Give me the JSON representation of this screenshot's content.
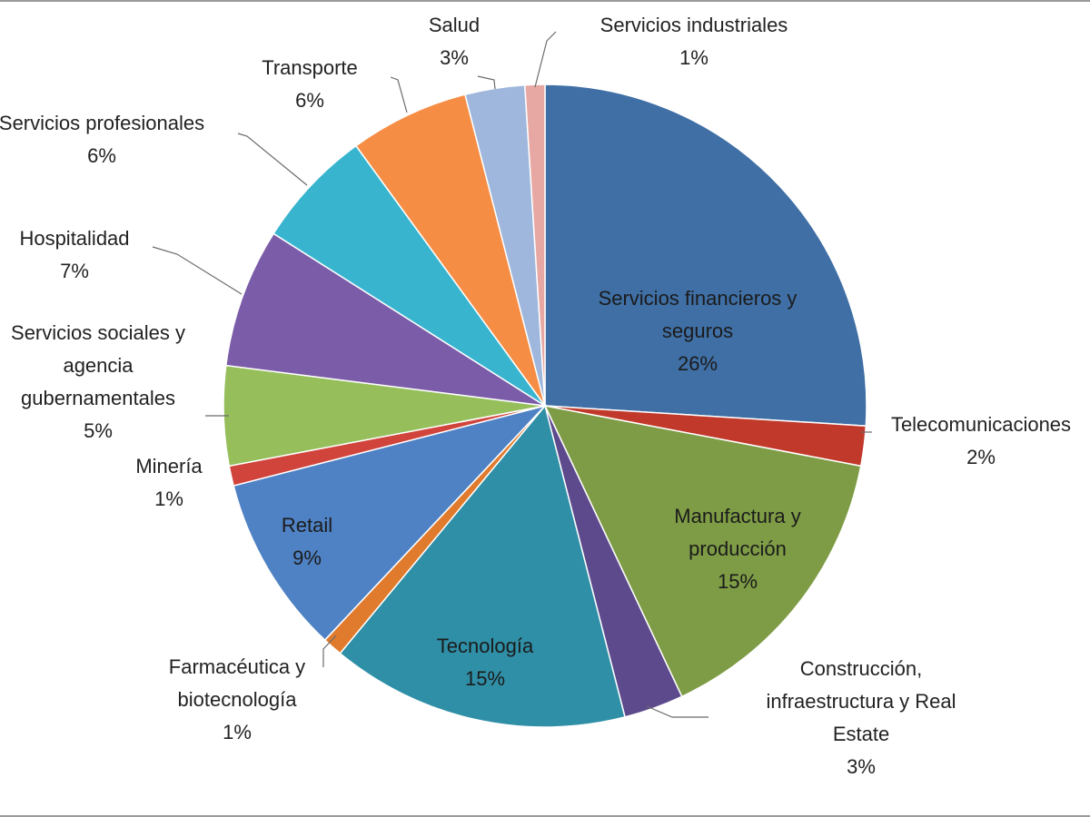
{
  "chart_data": {
    "type": "pie",
    "title": "",
    "slices": [
      {
        "label_lines": [
          "Servicios financieros y",
          "seguros"
        ],
        "percent_label": "26%",
        "value": 26,
        "color": "#3f6fa5"
      },
      {
        "label_lines": [
          "Telecomunicaciones"
        ],
        "percent_label": "2%",
        "value": 2,
        "color": "#c0392b"
      },
      {
        "label_lines": [
          "Manufactura y",
          "producción"
        ],
        "percent_label": "15%",
        "value": 15,
        "color": "#7e9c45"
      },
      {
        "label_lines": [
          "Construcción,",
          "infraestructura y Real",
          "Estate"
        ],
        "percent_label": "3%",
        "value": 3,
        "color": "#5d4a8c"
      },
      {
        "label_lines": [
          "Tecnología"
        ],
        "percent_label": "15%",
        "value": 15,
        "color": "#2f8fa6"
      },
      {
        "label_lines": [
          "Farmacéutica y",
          "biotecnología"
        ],
        "percent_label": "1%",
        "value": 1,
        "color": "#e07a2c"
      },
      {
        "label_lines": [
          "Retail"
        ],
        "percent_label": "9%",
        "value": 9,
        "color": "#4f82c4"
      },
      {
        "label_lines": [
          "Minería"
        ],
        "percent_label": "1%",
        "value": 1,
        "color": "#d0443c"
      },
      {
        "label_lines": [
          "Servicios sociales y",
          "agencia",
          "gubernamentales"
        ],
        "percent_label": "5%",
        "value": 5,
        "color": "#96bf5c"
      },
      {
        "label_lines": [
          "Hospitalidad"
        ],
        "percent_label": "7%",
        "value": 7,
        "color": "#7b5ca8"
      },
      {
        "label_lines": [
          "Servicios profesionales"
        ],
        "percent_label": "6%",
        "value": 6,
        "color": "#38b4cf"
      },
      {
        "label_lines": [
          "Transporte"
        ],
        "percent_label": "6%",
        "value": 6,
        "color": "#f58d45"
      },
      {
        "label_lines": [
          "Salud"
        ],
        "percent_label": "3%",
        "value": 3,
        "color": "#9fb7dc"
      },
      {
        "label_lines": [
          "Servicios industriales"
        ],
        "percent_label": "1%",
        "value": 1,
        "color": "#e7a7a3"
      }
    ]
  }
}
